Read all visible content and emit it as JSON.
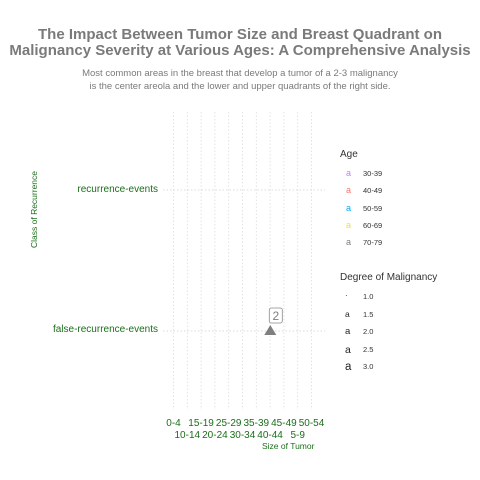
{
  "chart_data": {
    "type": "scatter",
    "title_lines": [
      "The Impact Between Tumor Size and Breast Quadrant on",
      "Malignancy Severity at Various Ages: A Comprehensive Analysis"
    ],
    "subtitle_lines": [
      "Most common areas in the breast that develop a tumor of a 2-3 malignancy",
      "is the center areola and the lower and upper quadrants of the right side."
    ],
    "xlabel": "Size of Tumor",
    "ylabel": "Class of Recurrence",
    "x_categories": [
      "0-4",
      "10-14",
      "15-19",
      "20-24",
      "25-29",
      "30-34",
      "35-39",
      "40-44",
      "45-49",
      "5-9",
      "50-54"
    ],
    "y_categories": [
      "false-recurrence-events",
      "recurrence-events"
    ],
    "points": [
      {
        "x": "35-39",
        "y": "false-recurrence-events",
        "label": "2"
      }
    ],
    "legend_age": {
      "title": "Age",
      "items": [
        {
          "label": "30-39",
          "color": "#c77cff"
        },
        {
          "label": "40-49",
          "color": "#f8766d"
        },
        {
          "label": "50-59",
          "color": "#00a9ff"
        },
        {
          "label": "60-69",
          "color": "#e7e72a"
        },
        {
          "label": "70-79",
          "color": "#7f7f7f"
        }
      ]
    },
    "legend_malignancy": {
      "title": "Degree of Malignancy",
      "items": [
        "1.0",
        "1.5",
        "2.0",
        "2.5",
        "3.0"
      ]
    },
    "grid": true,
    "legend_position": "right"
  }
}
